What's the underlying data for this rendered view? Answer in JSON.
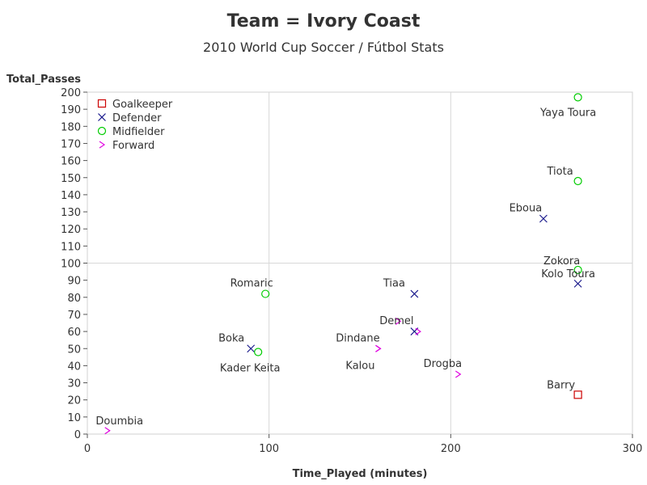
{
  "title": "Team = Ivory Coast",
  "subtitle": "2010 World Cup Soccer / Fútbol Stats",
  "chart_data": {
    "type": "scatter",
    "xlabel": "Time_Played (minutes)",
    "ylabel": "Total_Passes",
    "xlim": [
      0,
      300
    ],
    "ylim": [
      0,
      200
    ],
    "xticks": [
      0,
      100,
      200,
      300
    ],
    "yticks": [
      0,
      10,
      20,
      30,
      40,
      50,
      60,
      70,
      80,
      90,
      100,
      110,
      120,
      130,
      140,
      150,
      160,
      170,
      180,
      190,
      200
    ],
    "grid": "reference lines at x=100, x=200, y=100",
    "legend_position": "top-left",
    "series": [
      {
        "name": "Goalkeeper",
        "marker": "square",
        "color": "#cc0000",
        "points": [
          {
            "label": "Barry",
            "x": 270,
            "y": 23
          }
        ]
      },
      {
        "name": "Defender",
        "marker": "x",
        "color": "#1a1a8c",
        "points": [
          {
            "label": "Eboua",
            "x": 251,
            "y": 126
          },
          {
            "label": "Kolo Toura",
            "x": 270,
            "y": 88
          },
          {
            "label": "Tiaa",
            "x": 180,
            "y": 82
          },
          {
            "label": "Demel",
            "x": 180,
            "y": 60
          },
          {
            "label": "Boka",
            "x": 90,
            "y": 50
          }
        ]
      },
      {
        "name": "Midfielder",
        "marker": "circle",
        "color": "#00cc00",
        "points": [
          {
            "label": "Yaya Toura",
            "x": 270,
            "y": 197
          },
          {
            "label": "Tiota",
            "x": 270,
            "y": 148
          },
          {
            "label": "Zokora",
            "x": 270,
            "y": 96
          },
          {
            "label": "Romaric",
            "x": 98,
            "y": 82
          },
          {
            "label": "Kader Keita",
            "x": 94,
            "y": 48
          }
        ]
      },
      {
        "name": "Forward",
        "marker": "chevron",
        "color": "#e000e0",
        "points": [
          {
            "label": "",
            "x": 171,
            "y": 66
          },
          {
            "label": "",
            "x": 182,
            "y": 60
          },
          {
            "label": "Dindane",
            "x": 160,
            "y": 50
          },
          {
            "label": "Kalou",
            "x": 160,
            "y": 50
          },
          {
            "label": "Drogba",
            "x": 204,
            "y": 35
          },
          {
            "label": "Doumbia",
            "x": 11,
            "y": 2
          }
        ]
      }
    ]
  }
}
